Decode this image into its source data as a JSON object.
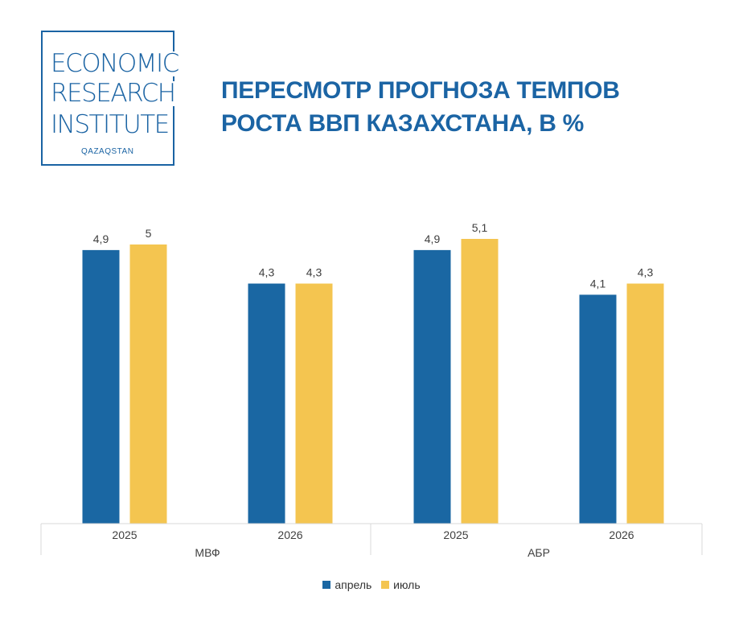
{
  "logo": {
    "line1": "ECONOMIC",
    "line2": "RESEARCH",
    "line3": "INSTITUTE",
    "sub": "QAZAQSTAN"
  },
  "title_line1": "ПЕРЕСМОТР ПРОГНОЗА ТЕМПОВ",
  "title_line2": "РОСТА ВВП КАЗАХСТАНА, В %",
  "colors": {
    "april": "#1a67a3",
    "july": "#f4c550",
    "title": "#1b64a4",
    "axis": "#d9d9d9"
  },
  "chart_data": {
    "type": "bar",
    "groups": [
      {
        "label": "МВФ",
        "categories": [
          "2025",
          "2026"
        ]
      },
      {
        "label": "АБР",
        "categories": [
          "2025",
          "2026"
        ]
      }
    ],
    "series": [
      {
        "name": "апрель",
        "values": [
          4.9,
          4.3,
          4.9,
          4.1
        ],
        "labels": [
          "4,9",
          "4,3",
          "4,9",
          "4,1"
        ]
      },
      {
        "name": "июль",
        "values": [
          5.0,
          4.3,
          5.1,
          4.3
        ],
        "labels": [
          "5",
          "4,3",
          "5,1",
          "4,3"
        ]
      }
    ],
    "ylim": [
      0,
      5.1
    ],
    "grid": false,
    "legend_position": "bottom"
  }
}
